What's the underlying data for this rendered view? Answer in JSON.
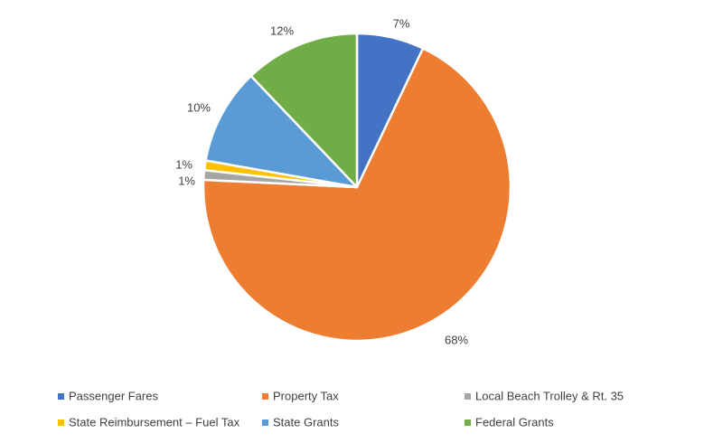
{
  "chart_data": {
    "type": "pie",
    "categories": [
      "Passenger Fares",
      "Property Tax",
      "Local Beach Trolley & Rt. 35",
      "State Reimbursement – Fuel Tax",
      "State Grants",
      "Federal Grants"
    ],
    "values": [
      7,
      68,
      1,
      1,
      10,
      12
    ],
    "data_labels": [
      "7%",
      "68%",
      "1%",
      "1%",
      "10%",
      "12%"
    ],
    "colors": [
      "#4472C4",
      "#ED7D31",
      "#A5A5A5",
      "#FFC000",
      "#5B9BD5",
      "#70AD47"
    ],
    "start_angle_deg": 0,
    "direction": "clockwise",
    "legend_position": "bottom"
  }
}
